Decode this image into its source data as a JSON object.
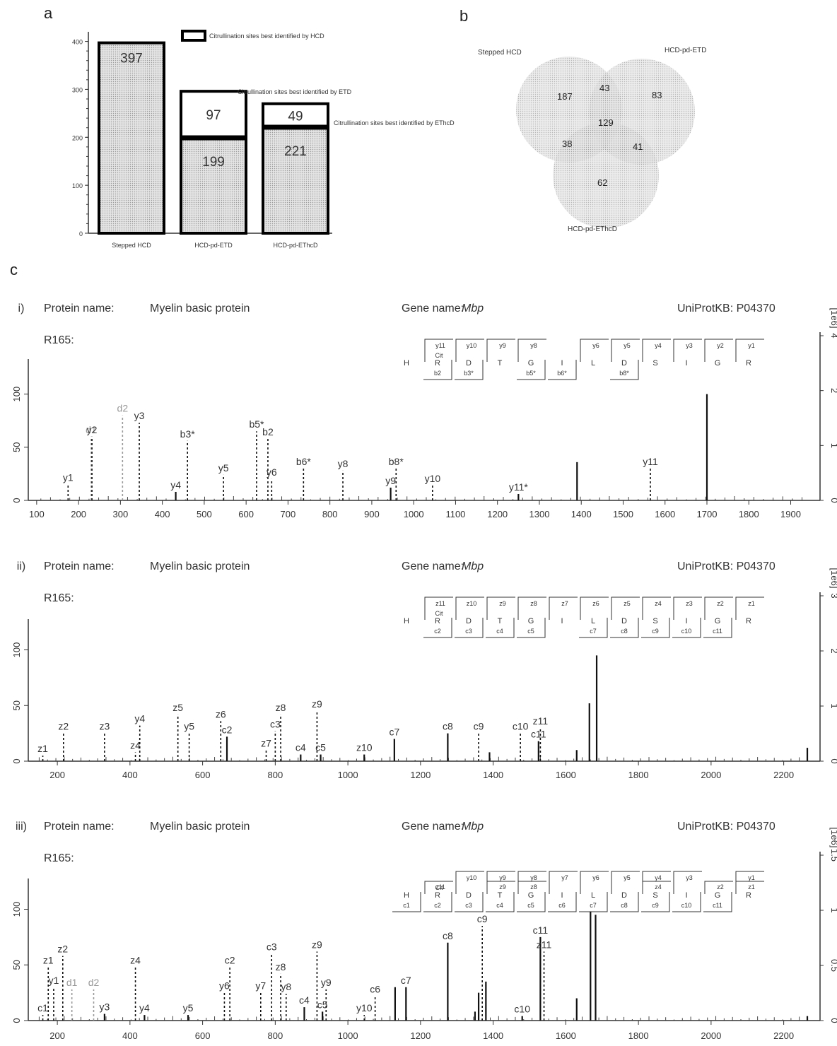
{
  "panel_a": {
    "letter": "a",
    "legend_label": "Citrullination sites best identified by HCD",
    "annotation_etd": "Citrullination sites best identified by ETD",
    "annotation_ethcd": "Citrullination sites best identified by EThcD",
    "chart_data": {
      "type": "bar",
      "categories": [
        "Stepped HCD",
        "HCD-pd-ETD",
        "HCD-pd-EThcD"
      ],
      "series": [
        {
          "name": "Citrullination sites best identified by HCD",
          "values": [
            397,
            199,
            221
          ]
        },
        {
          "name": "Citrullination sites best identified by ETD / EThcD",
          "values": [
            0,
            97,
            49
          ]
        }
      ],
      "bar_labels": [
        [
          "397"
        ],
        [
          "199",
          "97"
        ],
        [
          "221",
          "49"
        ]
      ],
      "yticks": [
        "0",
        "100",
        "200",
        "300",
        "400"
      ],
      "ylim": [
        0,
        420
      ]
    }
  },
  "panel_b": {
    "letter": "b",
    "set_labels": [
      "Stepped HCD",
      "HCD-pd-ETD",
      "HCD-pd-EThcD"
    ],
    "regions": {
      "only_a": "187",
      "only_b": "83",
      "only_c": "62",
      "ab": "43",
      "ac": "38",
      "bc": "41",
      "abc": "129"
    }
  },
  "panel_c": {
    "letter": "c",
    "spectra": [
      {
        "index": "i)",
        "protein_label": "Protein name:",
        "protein_name": "Myelin basic protein",
        "gene_label": "Gene name:",
        "gene_name": "Mbp",
        "uniprot": "UniProtKB: P04370",
        "site": "R165:",
        "right_axis_label": "[1e6]",
        "sequence": [
          "H",
          "R",
          "D",
          "T",
          "G",
          "I",
          "L",
          "D",
          "S",
          "I",
          "G",
          "R"
        ],
        "top_ions": [
          "",
          "y11",
          "y10",
          "y9",
          "y8",
          "",
          "y6",
          "y5",
          "y4",
          "y3",
          "y2",
          "y1"
        ],
        "bottom_ions": [
          "",
          "b2",
          "b3*",
          "",
          "b5*",
          "b6*",
          "",
          "b8*",
          "",
          "",
          "",
          ""
        ],
        "cit_mark": "Cit",
        "chart_data": {
          "type": "bar",
          "xlim": [
            80,
            1970
          ],
          "xticks": [
            100,
            200,
            300,
            400,
            500,
            600,
            700,
            800,
            900,
            1000,
            1100,
            1200,
            1300,
            1400,
            1500,
            1600,
            1700,
            1800,
            1900
          ],
          "ylim": [
            0,
            125
          ],
          "yticks": [
            0,
            50,
            100
          ],
          "right_ticks": [
            "0",
            "1",
            "2",
            "4"
          ],
          "peaks": [
            {
              "mz": 175,
              "h": 15,
              "label": "y1",
              "dashed": true
            },
            {
              "mz": 230,
              "h": 60,
              "label": "d1",
              "dashed": true,
              "grey": true
            },
            {
              "mz": 232,
              "h": 60,
              "label": "y2",
              "dashed": true
            },
            {
              "mz": 305,
              "h": 80,
              "label": "d2",
              "dashed": true,
              "grey": true
            },
            {
              "mz": 345,
              "h": 73,
              "label": "y3",
              "dashed": true
            },
            {
              "mz": 432,
              "h": 8,
              "label": "y4",
              "dashed": false
            },
            {
              "mz": 460,
              "h": 56,
              "label": "b3*",
              "dashed": true
            },
            {
              "mz": 546,
              "h": 24,
              "label": "y5",
              "dashed": true
            },
            {
              "mz": 625,
              "h": 65,
              "label": "b5*",
              "dashed": true
            },
            {
              "mz": 652,
              "h": 58,
              "label": "b2",
              "dashed": true
            },
            {
              "mz": 661,
              "h": 20,
              "label": "y6",
              "dashed": true
            },
            {
              "mz": 737,
              "h": 30,
              "label": "b6*",
              "dashed": true
            },
            {
              "mz": 831,
              "h": 28,
              "label": "y8",
              "dashed": true
            },
            {
              "mz": 945,
              "h": 12,
              "label": "y9",
              "dashed": false
            },
            {
              "mz": 958,
              "h": 30,
              "label": "b8*",
              "dashed": true
            },
            {
              "mz": 1045,
              "h": 14,
              "label": "y10",
              "dashed": true
            },
            {
              "mz": 1250,
              "h": 6,
              "label": "y11*",
              "dashed": false
            },
            {
              "mz": 1390,
              "h": 36,
              "label": "",
              "dashed": false
            },
            {
              "mz": 1565,
              "h": 30,
              "label": "y11",
              "dashed": true
            },
            {
              "mz": 1700,
              "h": 100,
              "label": "",
              "dashed": false
            }
          ]
        }
      },
      {
        "index": "ii)",
        "protein_label": "Protein name:",
        "protein_name": "Myelin basic protein",
        "gene_label": "Gene name:",
        "gene_name": "Mbp",
        "uniprot": "UniProtKB: P04370",
        "site": "R165:",
        "right_axis_label": "[1e6]",
        "sequence": [
          "H",
          "R",
          "D",
          "T",
          "G",
          "I",
          "L",
          "D",
          "S",
          "I",
          "G",
          "R"
        ],
        "top_ions": [
          "",
          "z11",
          "z10",
          "z9",
          "z8",
          "z7",
          "z6",
          "z5",
          "z4",
          "z3",
          "z2",
          "z1"
        ],
        "bottom_ions": [
          "",
          "c2",
          "c3",
          "c4",
          "c5",
          "",
          "c7",
          "c8",
          "c9",
          "c10",
          "c11",
          ""
        ],
        "cit_mark": "Cit",
        "chart_data": {
          "type": "bar",
          "xlim": [
            120,
            2300
          ],
          "xticks": [
            200,
            400,
            600,
            800,
            1000,
            1200,
            1400,
            1600,
            1800,
            2000,
            2200
          ],
          "ylim": [
            0,
            120
          ],
          "yticks": [
            0,
            50,
            100
          ],
          "right_ticks": [
            "0",
            "1",
            "2",
            "3"
          ],
          "peaks": [
            {
              "mz": 160,
              "h": 5,
              "label": "z1",
              "dashed": true
            },
            {
              "mz": 217,
              "h": 25,
              "label": "z2",
              "dashed": true
            },
            {
              "mz": 330,
              "h": 25,
              "label": "z3",
              "dashed": true
            },
            {
              "mz": 415,
              "h": 8,
              "label": "z4",
              "dashed": true
            },
            {
              "mz": 427,
              "h": 32,
              "label": "y4",
              "dashed": true
            },
            {
              "mz": 532,
              "h": 42,
              "label": "z5",
              "dashed": true
            },
            {
              "mz": 563,
              "h": 25,
              "label": "y5",
              "dashed": true
            },
            {
              "mz": 650,
              "h": 36,
              "label": "z6",
              "dashed": true
            },
            {
              "mz": 667,
              "h": 22,
              "label": "c2",
              "dashed": false
            },
            {
              "mz": 775,
              "h": 10,
              "label": "z7",
              "dashed": true
            },
            {
              "mz": 800,
              "h": 27,
              "label": "c3",
              "dashed": true
            },
            {
              "mz": 815,
              "h": 42,
              "label": "z8",
              "dashed": true
            },
            {
              "mz": 870,
              "h": 6,
              "label": "c4",
              "dashed": false
            },
            {
              "mz": 915,
              "h": 45,
              "label": "z9",
              "dashed": true
            },
            {
              "mz": 925,
              "h": 6,
              "label": "c5",
              "dashed": false
            },
            {
              "mz": 1045,
              "h": 6,
              "label": "z10",
              "dashed": false
            },
            {
              "mz": 1128,
              "h": 20,
              "label": "c7",
              "dashed": false
            },
            {
              "mz": 1275,
              "h": 25,
              "label": "c8",
              "dashed": false
            },
            {
              "mz": 1360,
              "h": 25,
              "label": "c9",
              "dashed": true
            },
            {
              "mz": 1390,
              "h": 8,
              "label": "",
              "dashed": false
            },
            {
              "mz": 1475,
              "h": 25,
              "label": "c10",
              "dashed": true
            },
            {
              "mz": 1525,
              "h": 18,
              "label": "c11",
              "dashed": false
            },
            {
              "mz": 1530,
              "h": 30,
              "label": "z11",
              "dashed": true
            },
            {
              "mz": 1630,
              "h": 10,
              "label": "",
              "dashed": false
            },
            {
              "mz": 1665,
              "h": 52,
              "label": "",
              "dashed": false
            },
            {
              "mz": 1685,
              "h": 95,
              "label": "",
              "dashed": false
            },
            {
              "mz": 2265,
              "h": 12,
              "label": "",
              "dashed": false
            }
          ]
        }
      },
      {
        "index": "iii)",
        "protein_label": "Protein name:",
        "protein_name": "Myelin basic protein",
        "gene_label": "Gene name:",
        "gene_name": "Mbp",
        "uniprot": "UniProtKB: P04370",
        "site": "R165:",
        "right_axis_label": "[1e6]",
        "sequence": [
          "H",
          "R",
          "D",
          "T",
          "G",
          "I",
          "L",
          "D",
          "S",
          "I",
          "G",
          "R"
        ],
        "top_ions": [
          "",
          "",
          "y10",
          "y9",
          "y8",
          "y7",
          "y6",
          "y5",
          "y4",
          "y3",
          "",
          "y1"
        ],
        "mid_ions": [
          "",
          "z11",
          "",
          "z9",
          "z8",
          "",
          "",
          "",
          "z4",
          "",
          "z2",
          "z1"
        ],
        "bottom_ions": [
          "c1",
          "c2",
          "c3",
          "c4",
          "c5",
          "c6",
          "c7",
          "c8",
          "c9",
          "c10",
          "c11",
          ""
        ],
        "cit_mark": "Cit",
        "chart_data": {
          "type": "bar",
          "xlim": [
            120,
            2300
          ],
          "xticks": [
            200,
            400,
            600,
            800,
            1000,
            1200,
            1400,
            1600,
            1800,
            2000,
            2200
          ],
          "ylim": [
            0,
            120
          ],
          "yticks": [
            0,
            50,
            100
          ],
          "right_ticks": [
            "0",
            "0.5",
            "1",
            "1.5"
          ],
          "peaks": [
            {
              "mz": 160,
              "h": 5,
              "label": "c1",
              "dashed": true
            },
            {
              "mz": 175,
              "h": 48,
              "label": "z1",
              "dashed": true
            },
            {
              "mz": 190,
              "h": 30,
              "label": "y1",
              "dashed": true
            },
            {
              "mz": 215,
              "h": 58,
              "label": "z2",
              "dashed": true
            },
            {
              "mz": 240,
              "h": 28,
              "label": "d1",
              "dashed": true,
              "grey": true
            },
            {
              "mz": 300,
              "h": 28,
              "label": "d2",
              "dashed": true,
              "grey": true
            },
            {
              "mz": 330,
              "h": 6,
              "label": "y3",
              "dashed": false
            },
            {
              "mz": 415,
              "h": 48,
              "label": "z4",
              "dashed": true
            },
            {
              "mz": 440,
              "h": 5,
              "label": "y4",
              "dashed": false
            },
            {
              "mz": 560,
              "h": 5,
              "label": "y5",
              "dashed": false
            },
            {
              "mz": 660,
              "h": 25,
              "label": "y6",
              "dashed": true
            },
            {
              "mz": 675,
              "h": 48,
              "label": "c2",
              "dashed": true
            },
            {
              "mz": 760,
              "h": 25,
              "label": "y7",
              "dashed": true
            },
            {
              "mz": 790,
              "h": 60,
              "label": "c3",
              "dashed": true
            },
            {
              "mz": 815,
              "h": 42,
              "label": "z8",
              "dashed": true
            },
            {
              "mz": 830,
              "h": 24,
              "label": "y8",
              "dashed": true
            },
            {
              "mz": 880,
              "h": 12,
              "label": "c4",
              "dashed": false
            },
            {
              "mz": 915,
              "h": 62,
              "label": "z9",
              "dashed": true
            },
            {
              "mz": 930,
              "h": 8,
              "label": "c5",
              "dashed": false
            },
            {
              "mz": 940,
              "h": 28,
              "label": "y9",
              "dashed": true
            },
            {
              "mz": 1045,
              "h": 5,
              "label": "y10",
              "dashed": true
            },
            {
              "mz": 1075,
              "h": 22,
              "label": "c6",
              "dashed": true
            },
            {
              "mz": 1130,
              "h": 30,
              "label": "",
              "dashed": false
            },
            {
              "mz": 1160,
              "h": 30,
              "label": "c7",
              "dashed": false
            },
            {
              "mz": 1275,
              "h": 70,
              "label": "c8",
              "dashed": false
            },
            {
              "mz": 1350,
              "h": 8,
              "label": "",
              "dashed": false
            },
            {
              "mz": 1360,
              "h": 25,
              "label": "",
              "dashed": false
            },
            {
              "mz": 1370,
              "h": 85,
              "label": "c9",
              "dashed": true
            },
            {
              "mz": 1380,
              "h": 35,
              "label": "",
              "dashed": false
            },
            {
              "mz": 1480,
              "h": 4,
              "label": "c10",
              "dashed": false
            },
            {
              "mz": 1530,
              "h": 75,
              "label": "c11",
              "dashed": false
            },
            {
              "mz": 1540,
              "h": 62,
              "label": "z11",
              "dashed": true
            },
            {
              "mz": 1630,
              "h": 20,
              "label": "",
              "dashed": false
            },
            {
              "mz": 1668,
              "h": 98,
              "label": "",
              "dashed": false
            },
            {
              "mz": 1682,
              "h": 95,
              "label": "",
              "dashed": false
            },
            {
              "mz": 2265,
              "h": 4,
              "label": "",
              "dashed": false
            }
          ]
        }
      }
    ]
  }
}
